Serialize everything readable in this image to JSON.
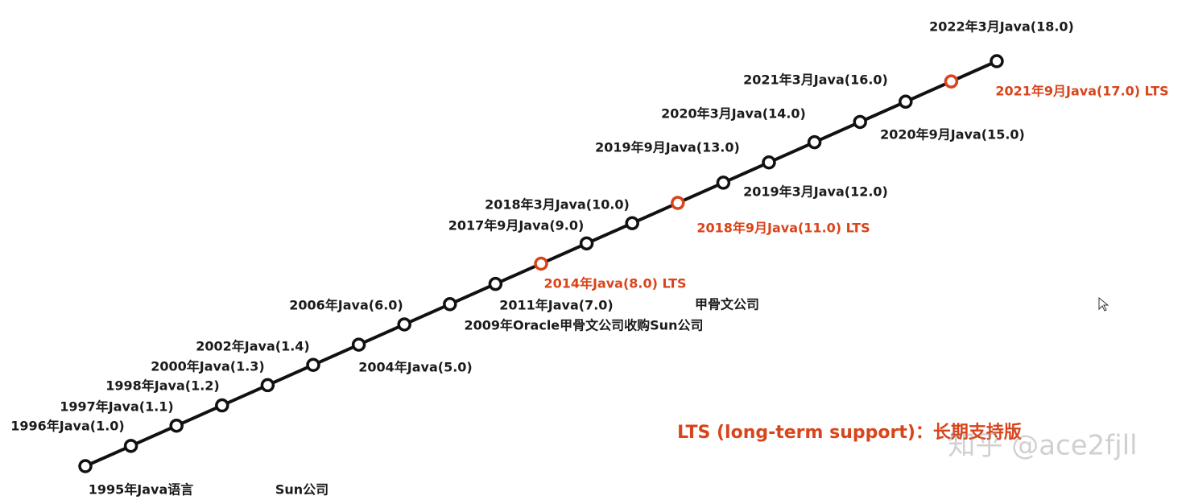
{
  "nodes": [
    {
      "label": "1995年Java语言",
      "lts": false
    },
    {
      "label": "1996年Java(1.0)",
      "lts": false
    },
    {
      "label": "1997年Java(1.1)",
      "lts": false
    },
    {
      "label": "1998年Java(1.2)",
      "lts": false
    },
    {
      "label": "2000年Java(1.3)",
      "lts": false
    },
    {
      "label": "2002年Java(1.4)",
      "lts": false
    },
    {
      "label": "2004年Java(5.0)",
      "lts": false
    },
    {
      "label": "2006年Java(6.0)",
      "lts": false
    },
    {
      "label": "2009年Oracle甲骨文公司收购Sun公司",
      "lts": false
    },
    {
      "label": "2011年Java(7.0)",
      "lts": false
    },
    {
      "label": "2014年Java(8.0) LTS",
      "lts": true
    },
    {
      "label": "2017年9月Java(9.0)",
      "lts": false
    },
    {
      "label": "2018年3月Java(10.0)",
      "lts": false
    },
    {
      "label": "2018年9月Java(11.0) LTS",
      "lts": true
    },
    {
      "label": "2019年3月Java(12.0)",
      "lts": false
    },
    {
      "label": "2019年9月Java(13.0)",
      "lts": false
    },
    {
      "label": "2020年3月Java(14.0)",
      "lts": false
    },
    {
      "label": "2020年9月Java(15.0)",
      "lts": false
    },
    {
      "label": "2021年3月Java(16.0)",
      "lts": false
    },
    {
      "label": "2021年9月Java(17.0) LTS",
      "lts": true
    },
    {
      "label": "2022年3月Java(18.0)",
      "lts": false
    }
  ],
  "era_labels": [
    "Sun公司",
    "甲骨文公司"
  ],
  "legend_note": "LTS (long-term support)：长期支持版",
  "watermark": "知乎 @ace2fjll"
}
